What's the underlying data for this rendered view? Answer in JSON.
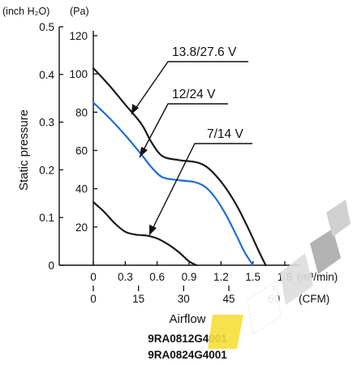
{
  "chart_data": {
    "type": "line",
    "xlabel": "Airflow",
    "ylabel": "Static pressure",
    "x_axes": [
      {
        "unit": "(m³/min)",
        "range": [
          0,
          1.8
        ],
        "ticks": [
          "0",
          "0.3",
          "0.6",
          "0.9",
          "1.2",
          "1.5",
          "1.8"
        ]
      },
      {
        "unit": "(CFM)",
        "range": [
          0,
          63.6
        ],
        "ticks": [
          "0",
          "15",
          "30",
          "45",
          "60"
        ]
      }
    ],
    "y_axes": [
      {
        "unit": "(inch H₂O)",
        "range": [
          0,
          0.5
        ],
        "ticks": [
          "0",
          "0.1",
          "0.2",
          "0.3",
          "0.4",
          "0.5"
        ]
      },
      {
        "unit": "(Pa)",
        "range": [
          0,
          120
        ],
        "ticks": [
          "20",
          "40",
          "60",
          "80",
          "100",
          "120"
        ]
      }
    ],
    "x_units": "m³/min",
    "y_units": "Pa",
    "series": [
      {
        "name": "13.8/27.6 V",
        "color": "#1a1a1a",
        "x": [
          0,
          0.15,
          0.3,
          0.45,
          0.55,
          0.65,
          0.8,
          0.95,
          1.05,
          1.15,
          1.25,
          1.35,
          1.45,
          1.55,
          1.62
        ],
        "y": [
          103,
          94,
          84,
          74,
          64,
          57,
          55,
          54,
          52,
          47,
          40,
          31,
          20,
          8,
          0
        ]
      },
      {
        "name": "12/24 V",
        "color": "#1f6fd1",
        "x": [
          0,
          0.15,
          0.3,
          0.45,
          0.55,
          0.65,
          0.8,
          0.95,
          1.05,
          1.15,
          1.25,
          1.35,
          1.42,
          1.5
        ],
        "y": [
          85,
          77,
          68,
          58,
          51,
          46,
          44.5,
          43.5,
          41,
          35,
          26,
          15,
          7,
          0
        ]
      },
      {
        "name": "7/14 V",
        "color": "#1a1a1a",
        "x": [
          0,
          0.1,
          0.2,
          0.3,
          0.4,
          0.5,
          0.6,
          0.7,
          0.8,
          0.9,
          0.97
        ],
        "y": [
          33,
          28,
          22,
          17.5,
          16,
          15.5,
          14,
          11,
          7,
          2,
          0
        ]
      }
    ],
    "annotations": [
      "13.8/27.6 V",
      "12/24 V",
      "7/14 V"
    ],
    "models": [
      "9RA0812G4001",
      "9RA0824G4001"
    ],
    "legend": "none",
    "grid": false
  }
}
